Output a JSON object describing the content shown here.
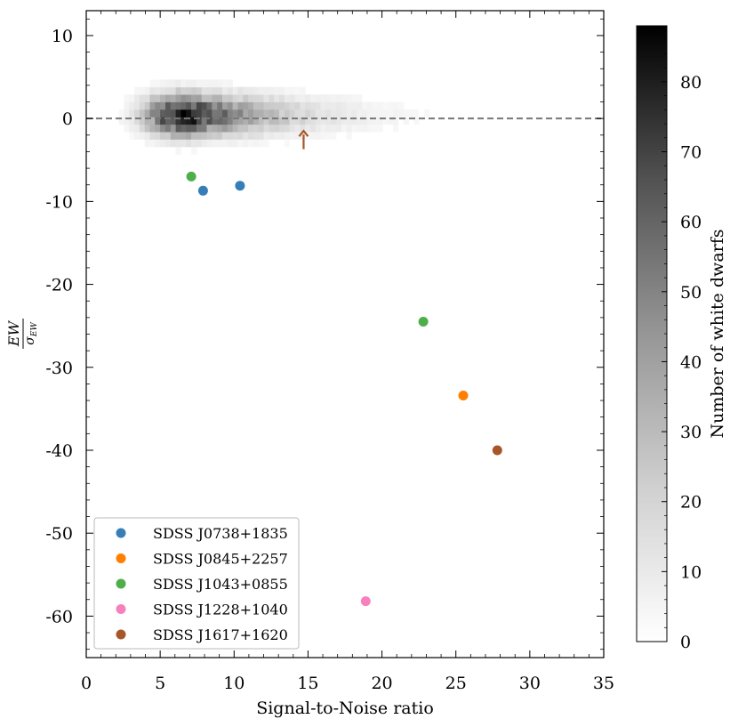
{
  "chart_data": {
    "type": "scatter",
    "xlabel": "Signal-to-Noise ratio",
    "ylabel": "EW/σEW",
    "ylabel_numerator": "EW",
    "ylabel_denominator_symbol": "σ",
    "ylabel_denominator_sub": "EW",
    "xlim": [
      0,
      35
    ],
    "ylim": [
      -65,
      13
    ],
    "xticks": [
      0,
      5,
      10,
      15,
      20,
      25,
      30,
      35
    ],
    "yticks": [
      10,
      0,
      -10,
      -20,
      -30,
      -40,
      -50,
      -60
    ],
    "reference_line": {
      "y": 0,
      "style": "dashed",
      "color": "#777777"
    },
    "background": {
      "type": "2d-histogram",
      "description_cmap": "greys",
      "colorbar": {
        "label": "Number of white dwarfs",
        "range": [
          0,
          88
        ],
        "ticks": [
          0,
          10,
          20,
          30,
          40,
          50,
          60,
          70,
          80
        ]
      }
    },
    "series": [
      {
        "name": "SDSS J0738+1835",
        "color": "#377eb8",
        "points": [
          [
            7.9,
            -8.7
          ],
          [
            10.4,
            -8.1
          ]
        ]
      },
      {
        "name": "SDSS J0845+2257",
        "color": "#ff7f00",
        "points": [
          [
            25.5,
            -33.4
          ]
        ]
      },
      {
        "name": "SDSS J1043+0855",
        "color": "#4daf4a",
        "points": [
          [
            7.1,
            -7.0
          ],
          [
            22.8,
            -24.5
          ]
        ]
      },
      {
        "name": "SDSS J1228+1040",
        "color": "#f781bf",
        "points": [
          [
            18.9,
            -58.2
          ]
        ]
      },
      {
        "name": "SDSS J1617+1620",
        "color": "#a65628",
        "points": [
          [
            27.8,
            -40.0
          ]
        ]
      }
    ],
    "annotations": [
      {
        "type": "arrow-up",
        "x": 14.7,
        "y": -3.7,
        "y_end": -1.5,
        "color": "#a65628"
      }
    ],
    "legend": {
      "placement": "lower-left"
    }
  }
}
